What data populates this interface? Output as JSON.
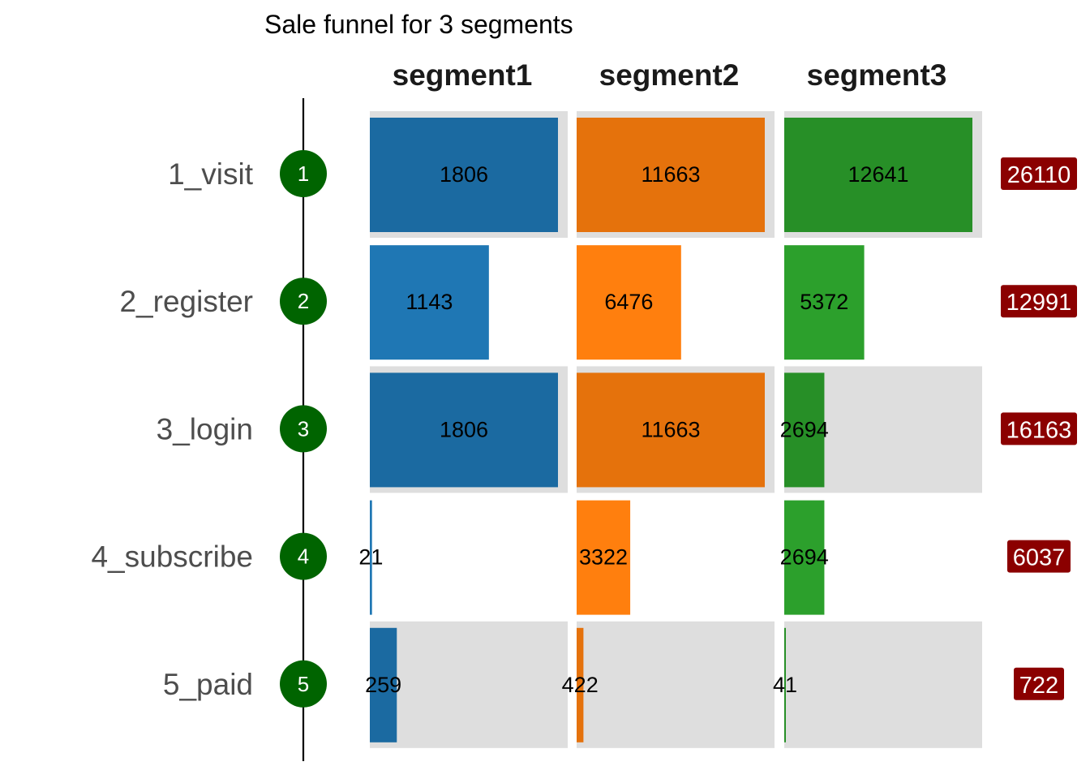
{
  "chart_data": {
    "type": "bar",
    "title": "Sale funnel for 3 segments",
    "categories": [
      "1_visit",
      "2_register",
      "3_login",
      "4_subscribe",
      "5_paid"
    ],
    "badges": [
      "1",
      "2",
      "3",
      "4",
      "5"
    ],
    "series": [
      {
        "name": "segment1",
        "color": "#1f77b4",
        "values": [
          1806,
          1143,
          1806,
          21,
          259
        ]
      },
      {
        "name": "segment2",
        "color": "#ff7f0e",
        "values": [
          11663,
          6476,
          11663,
          3322,
          422
        ]
      },
      {
        "name": "segment3",
        "color": "#2ca02c",
        "values": [
          12641,
          5372,
          2694,
          2694,
          41
        ]
      }
    ],
    "totals": [
      26110,
      12991,
      16163,
      6037,
      722
    ],
    "highlighted_rows": [
      true,
      false,
      true,
      false,
      true
    ],
    "colors": {
      "badge": "#006400",
      "total_badge": "#8b0000",
      "panel_background": "#dedede",
      "shadow_overlay": "#000000"
    },
    "legend": "none",
    "grid": false
  }
}
